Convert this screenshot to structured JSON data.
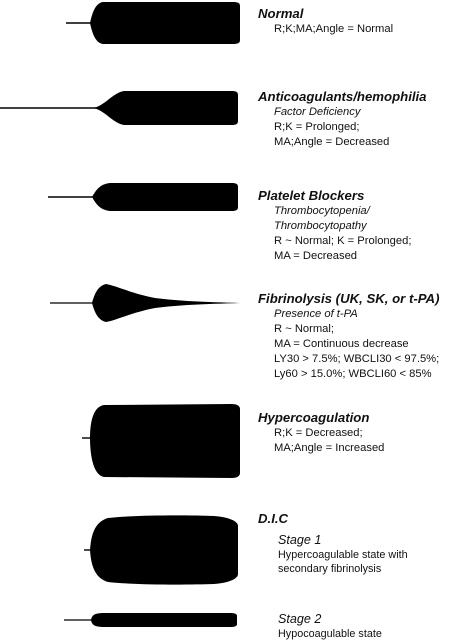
{
  "patterns": [
    {
      "id": "normal",
      "title": "Normal",
      "subtitles": [],
      "lines": [
        "R;K;MA;Angle = Normal"
      ]
    },
    {
      "id": "anticoagulants",
      "title": "Anticoagulants/hemophilia",
      "subtitles": [
        "Factor Deficiency"
      ],
      "lines": [
        "R;K = Prolonged;",
        "MA;Angle = Decreased"
      ]
    },
    {
      "id": "platelet-blockers",
      "title": "Platelet Blockers",
      "subtitles": [
        "Thrombocytopenia/",
        "Thrombocytopathy"
      ],
      "lines": [
        "R ~ Normal; K = Prolonged;",
        "MA = Decreased"
      ]
    },
    {
      "id": "fibrinolysis",
      "title": "Fibrinolysis (UK, SK, or t-PA)",
      "subtitles": [
        "Presence of t-PA"
      ],
      "lines": [
        "R ~ Normal;",
        "MA = Continuous decrease",
        "LY30 > 7.5%; WBCLI30 < 97.5%;",
        "Ly60 > 15.0%; WBCLI60 < 85%"
      ]
    },
    {
      "id": "hypercoagulation",
      "title": "Hypercoagulation",
      "subtitles": [],
      "lines": [
        "R;K = Decreased;",
        "MA;Angle = Increased"
      ]
    },
    {
      "id": "dic",
      "title": "D.I.C",
      "subtitles": [],
      "lines": []
    }
  ],
  "stages": [
    {
      "id": "stage-1",
      "title": "Stage 1",
      "lines": [
        "Hypercoagulable state with",
        "secondary fibrinolysis"
      ]
    },
    {
      "id": "stage-2",
      "title": "Stage 2",
      "lines": [
        "Hypocoagulable state"
      ]
    }
  ],
  "colors": {
    "trace": "#000000",
    "background": "#ffffff",
    "text": "#111111"
  }
}
